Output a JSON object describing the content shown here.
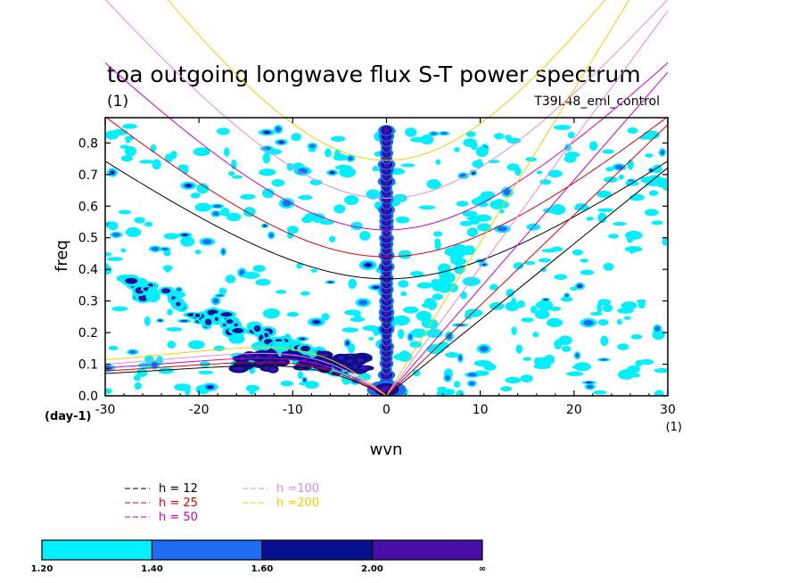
{
  "chart_data": {
    "type": "heatmap",
    "title": "toa outgoing longwave flux S-T power spectrum",
    "subtitle": "(1)",
    "experiment": "T39L48_eml_control",
    "xlabel": "wvn",
    "ylabel": "freq",
    "x_unit": "(1)",
    "y_unit": "(day-1)",
    "xlim": [
      -30,
      30
    ],
    "ylim": [
      0,
      0.88
    ],
    "xticks": [
      "-30",
      "-20",
      "-10",
      "0",
      "10",
      "20",
      "30"
    ],
    "yticks": [
      "0.0",
      "0.1",
      "0.2",
      "0.3",
      "0.4",
      "0.5",
      "0.6",
      "0.7",
      "0.8"
    ],
    "contour_levels": [
      1.2,
      1.4,
      1.6,
      2.0
    ],
    "colorbar": {
      "labels": [
        "1.20",
        "1.40",
        "1.60",
        "2.00",
        "∞"
      ],
      "colors": [
        "#00f0ff",
        "#1d6cf2",
        "#07108f",
        "#4a0ea8"
      ]
    },
    "dispersion_curves": [
      {
        "name": "h = 12",
        "h": 12,
        "color": "#000000",
        "wig_freq_at_k0": 0.37
      },
      {
        "name": "h = 25",
        "h": 25,
        "color": "#e00000",
        "wig_freq_at_k0": 0.44
      },
      {
        "name": "h = 50",
        "h": 50,
        "color": "#d000c8",
        "wig_freq_at_k0": 0.525
      },
      {
        "name": "h =100",
        "h": 100,
        "color": "#e08ce0",
        "wig_freq_at_k0": 0.625
      },
      {
        "name": "h =200",
        "h": 200,
        "color": "#f0d000",
        "wig_freq_at_k0": 0.745
      }
    ],
    "features": [
      {
        "name": "kelvin-wave-band",
        "x": [
          0,
          30
        ],
        "y": [
          0,
          0.88
        ]
      },
      {
        "name": "k0-column",
        "x": 0,
        "y": [
          0.02,
          0.85
        ]
      },
      {
        "name": "rossby-band",
        "x": [
          -30,
          -3
        ],
        "y": [
          0.05,
          0.35
        ]
      }
    ]
  },
  "legend": {
    "items": [
      "h = 12",
      "h = 25",
      "h = 50",
      "h =100",
      "h =200"
    ]
  }
}
